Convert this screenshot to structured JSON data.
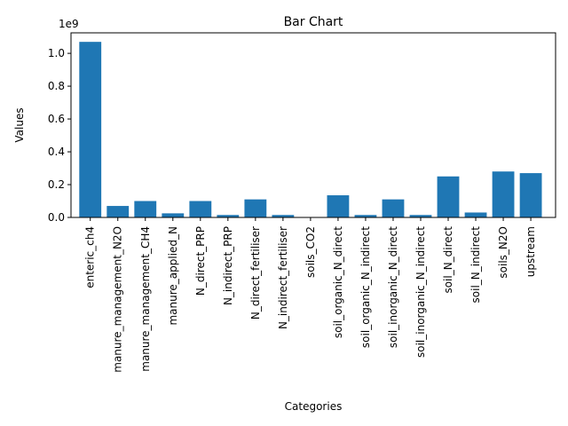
{
  "chart_data": {
    "type": "bar",
    "title": "Bar Chart",
    "xlabel": "Categories",
    "ylabel": "Values",
    "scale_label": "1e9",
    "scale_factor": 1000000000,
    "ylim": [
      0,
      1.125
    ],
    "yticks": [
      0.0,
      0.2,
      0.4,
      0.6,
      0.8,
      1.0
    ],
    "ytick_labels": [
      "0.0",
      "0.2",
      "0.4",
      "0.6",
      "0.8",
      "1.0"
    ],
    "grid": false,
    "bar_color": "#1f77b4",
    "categories": [
      "enteric_ch4",
      "manure_management_N2O",
      "manure_management_CH4",
      "manure_applied_N",
      "N_direct_PRP",
      "N_indirect_PRP",
      "N_direct_fertiliser",
      "N_indirect_fertiliser",
      "soils_CO2",
      "soil_organic_N_direct",
      "soil_organic_N_indirect",
      "soil_inorganic_N_direct",
      "soil_inorganic_N_indirect",
      "soil_N_direct",
      "soil_N_indirect",
      "soils_N2O",
      "upstream"
    ],
    "values": [
      1.07,
      0.07,
      0.1,
      0.025,
      0.1,
      0.015,
      0.11,
      0.015,
      0.0,
      0.135,
      0.015,
      0.11,
      0.015,
      0.25,
      0.03,
      0.28,
      0.27
    ]
  }
}
